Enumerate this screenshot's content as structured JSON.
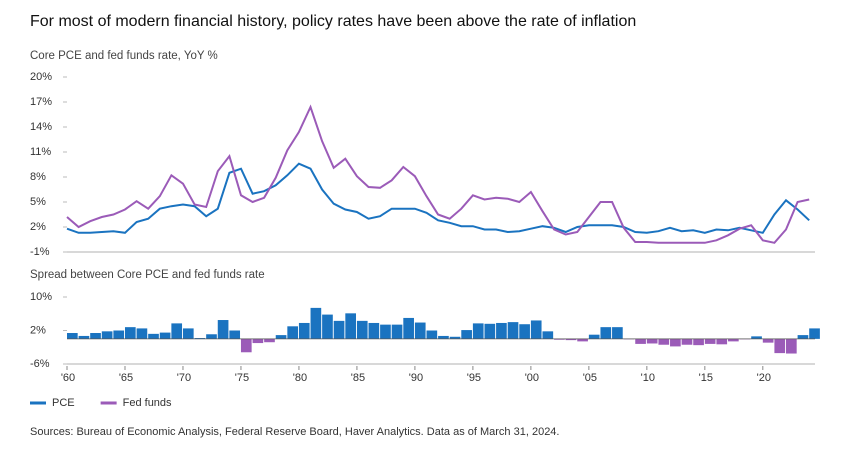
{
  "title": "For most of modern financial history, policy rates have been above the rate of inflation",
  "source": "Sources: Bureau of Economic Analysis, Federal Reserve Board, Haver Analytics. Data as of March 31, 2024.",
  "chart_data": [
    {
      "type": "line",
      "subtitle": "Core PCE and fed funds rate, YoY %",
      "x": [
        1960,
        1961,
        1962,
        1963,
        1964,
        1965,
        1966,
        1967,
        1968,
        1969,
        1970,
        1971,
        1972,
        1973,
        1974,
        1975,
        1976,
        1977,
        1978,
        1979,
        1980,
        1981,
        1982,
        1983,
        1984,
        1985,
        1986,
        1987,
        1988,
        1989,
        1990,
        1991,
        1992,
        1993,
        1994,
        1995,
        1996,
        1997,
        1998,
        1999,
        2000,
        2001,
        2002,
        2003,
        2004,
        2005,
        2006,
        2007,
        2008,
        2009,
        2010,
        2011,
        2012,
        2013,
        2014,
        2015,
        2016,
        2017,
        2018,
        2019,
        2020,
        2021,
        2022,
        2023,
        2024
      ],
      "series": [
        {
          "name": "PCE",
          "color": "#1a73c0",
          "values": [
            1.8,
            1.3,
            1.3,
            1.4,
            1.5,
            1.3,
            2.6,
            3.0,
            4.2,
            4.5,
            4.7,
            4.5,
            3.3,
            4.2,
            8.5,
            9.0,
            6.0,
            6.3,
            7.0,
            8.2,
            9.6,
            9.0,
            6.5,
            4.8,
            4.1,
            3.8,
            3.0,
            3.3,
            4.2,
            4.2,
            4.2,
            3.7,
            2.8,
            2.5,
            2.1,
            2.1,
            1.7,
            1.7,
            1.4,
            1.5,
            1.8,
            2.1,
            1.9,
            1.4,
            2.0,
            2.2,
            2.2,
            2.2,
            2.0,
            1.4,
            1.3,
            1.5,
            1.9,
            1.5,
            1.6,
            1.3,
            1.7,
            1.6,
            1.9,
            1.6,
            1.3,
            3.5,
            5.2,
            4.1,
            2.8
          ]
        },
        {
          "name": "Fed funds",
          "color": "#9b5bb8",
          "values": [
            3.2,
            2.0,
            2.7,
            3.2,
            3.5,
            4.1,
            5.1,
            4.2,
            5.7,
            8.2,
            7.2,
            4.7,
            4.4,
            8.7,
            10.5,
            5.8,
            5.0,
            5.5,
            7.9,
            11.2,
            13.4,
            16.4,
            12.3,
            9.1,
            10.2,
            8.1,
            6.8,
            6.7,
            7.6,
            9.2,
            8.1,
            5.7,
            3.5,
            3.0,
            4.2,
            5.8,
            5.3,
            5.5,
            5.4,
            5.0,
            6.2,
            3.9,
            1.7,
            1.1,
            1.4,
            3.2,
            5.0,
            5.0,
            1.9,
            0.2,
            0.2,
            0.1,
            0.1,
            0.1,
            0.1,
            0.1,
            0.4,
            1.0,
            1.8,
            2.2,
            0.4,
            0.1,
            1.7,
            5.0,
            5.3
          ]
        }
      ],
      "xlim": [
        1960,
        2024.5
      ],
      "ylim": [
        -1,
        20
      ],
      "yticks": [
        {
          "value": -1,
          "label": "-1%"
        },
        {
          "value": 2,
          "label": "2%"
        },
        {
          "value": 5,
          "label": "5%"
        },
        {
          "value": 8,
          "label": "8%"
        },
        {
          "value": 11,
          "label": "11%"
        },
        {
          "value": 14,
          "label": "14%"
        },
        {
          "value": 17,
          "label": "17%"
        },
        {
          "value": 20,
          "label": "20%"
        }
      ],
      "legend": "bottom-left"
    },
    {
      "type": "bar",
      "subtitle": "Spread between Core PCE and fed funds rate",
      "x": [
        1960,
        1961,
        1962,
        1963,
        1964,
        1965,
        1966,
        1967,
        1968,
        1969,
        1970,
        1971,
        1972,
        1973,
        1974,
        1975,
        1976,
        1977,
        1978,
        1979,
        1980,
        1981,
        1982,
        1983,
        1984,
        1985,
        1986,
        1987,
        1988,
        1989,
        1990,
        1991,
        1992,
        1993,
        1994,
        1995,
        1996,
        1997,
        1998,
        1999,
        2000,
        2001,
        2002,
        2003,
        2004,
        2005,
        2006,
        2007,
        2008,
        2009,
        2010,
        2011,
        2012,
        2013,
        2014,
        2015,
        2016,
        2017,
        2018,
        2019,
        2020,
        2021,
        2022,
        2023,
        2024
      ],
      "values": [
        1.4,
        0.7,
        1.4,
        1.8,
        2.0,
        2.8,
        2.5,
        1.2,
        1.5,
        3.7,
        2.5,
        0.2,
        1.1,
        4.5,
        2.0,
        -3.2,
        -1.0,
        -0.8,
        0.9,
        3.0,
        3.8,
        7.4,
        5.8,
        4.3,
        6.1,
        4.3,
        3.8,
        3.4,
        3.4,
        5.0,
        3.9,
        2.0,
        0.7,
        0.5,
        2.1,
        3.7,
        3.6,
        3.8,
        4.0,
        3.5,
        4.4,
        1.8,
        -0.2,
        -0.3,
        -0.6,
        1.0,
        2.8,
        2.8,
        -0.1,
        -1.2,
        -1.1,
        -1.4,
        -1.8,
        -1.4,
        -1.5,
        -1.2,
        -1.3,
        -0.6,
        -0.1,
        0.6,
        -0.9,
        -3.4,
        -3.5,
        0.9,
        2.5
      ],
      "positive_color": "#1a73c0",
      "negative_color": "#9b5bb8",
      "xlim": [
        1960,
        2024.5
      ],
      "xticks": [
        {
          "value": 1960,
          "label": "'60"
        },
        {
          "value": 1965,
          "label": "'65"
        },
        {
          "value": 1970,
          "label": "'70"
        },
        {
          "value": 1975,
          "label": "'75"
        },
        {
          "value": 1980,
          "label": "'80"
        },
        {
          "value": 1985,
          "label": "'85"
        },
        {
          "value": 1990,
          "label": "'90"
        },
        {
          "value": 1995,
          "label": "'95"
        },
        {
          "value": 2000,
          "label": "'00"
        },
        {
          "value": 2005,
          "label": "'05"
        },
        {
          "value": 2010,
          "label": "'10"
        },
        {
          "value": 2015,
          "label": "'15"
        },
        {
          "value": 2020,
          "label": "'20"
        }
      ],
      "ylim": [
        -6,
        10
      ],
      "yticks": [
        {
          "value": -6,
          "label": "-6%"
        },
        {
          "value": 2,
          "label": "2%"
        },
        {
          "value": 10,
          "label": "10%"
        }
      ]
    }
  ]
}
